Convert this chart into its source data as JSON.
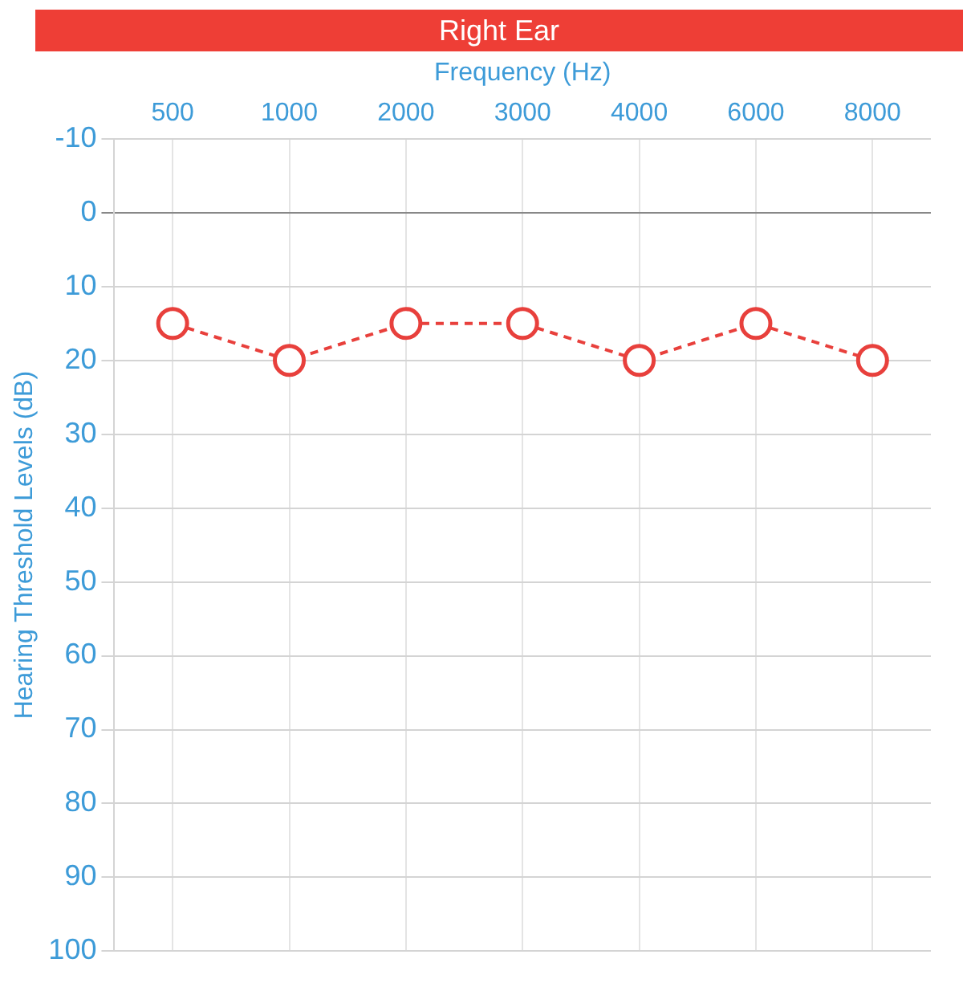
{
  "chart_data": {
    "type": "line",
    "title": "Right Ear",
    "xlabel": "Frequency (Hz)",
    "ylabel": "Hearing Threshold Levels (dB)",
    "categories": [
      "500",
      "1000",
      "2000",
      "3000",
      "4000",
      "6000",
      "8000"
    ],
    "series": [
      {
        "color": "#e8403c",
        "values": [
          15,
          20,
          15,
          15,
          20,
          15,
          20
        ]
      }
    ],
    "ylim": [
      100,
      -10
    ],
    "yticks": [
      -10,
      0,
      10,
      20,
      30,
      40,
      50,
      60,
      70,
      80,
      90,
      100
    ],
    "grid": true,
    "legend": false,
    "marker": "circle",
    "line_style": "dashed"
  }
}
